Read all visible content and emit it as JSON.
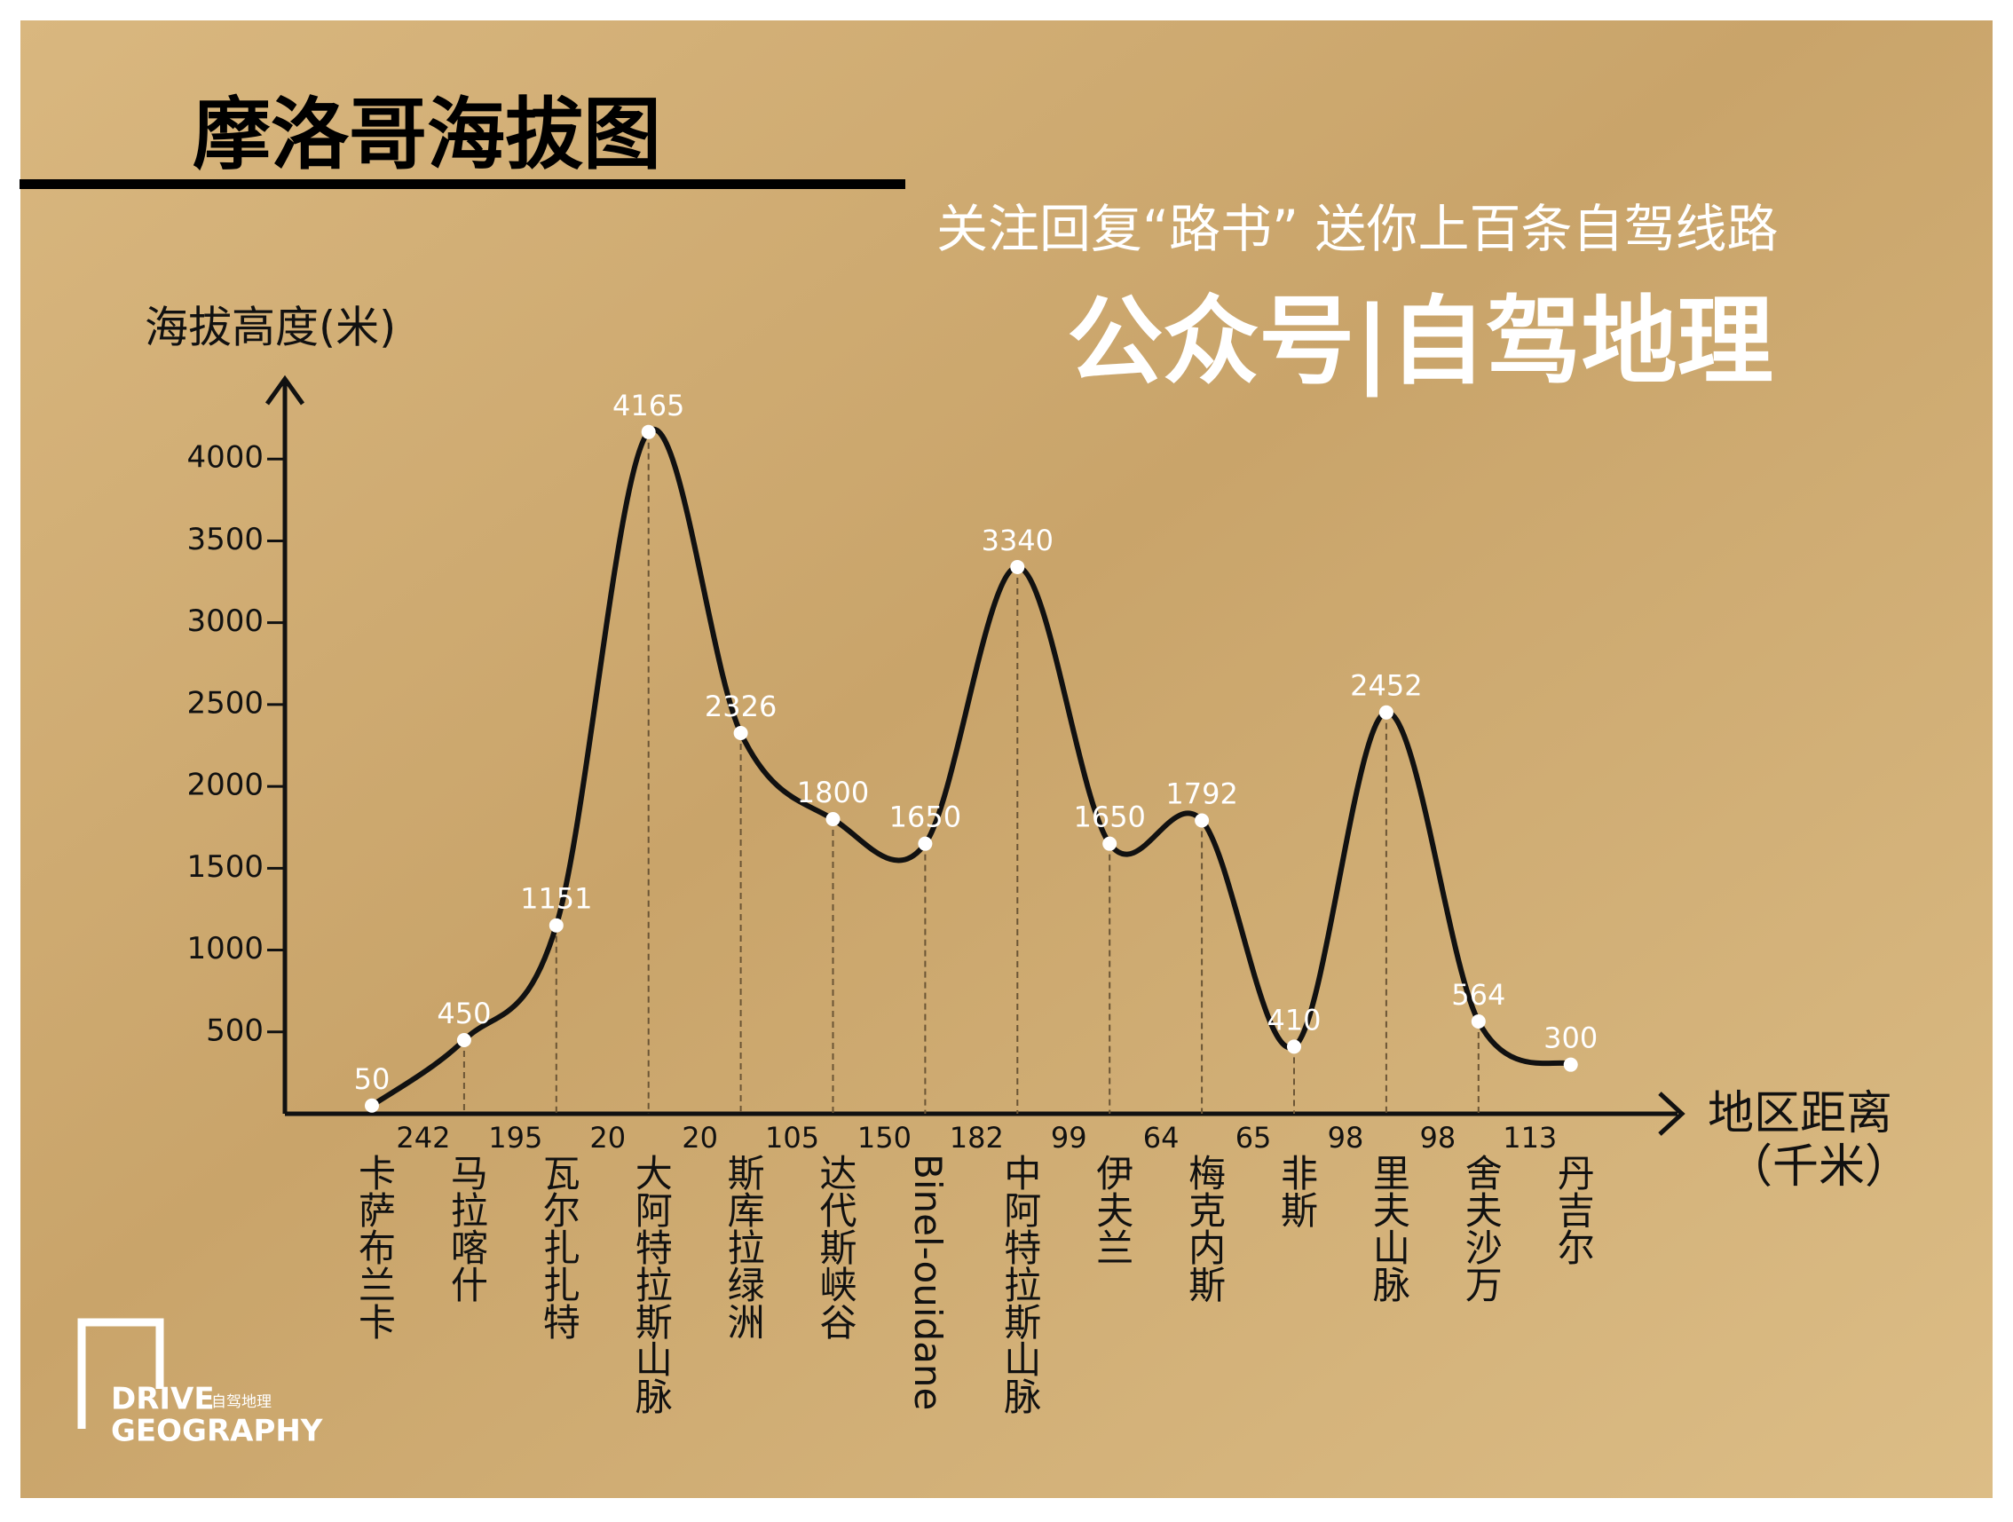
{
  "chart_data": {
    "type": "line",
    "title": "摩洛哥海拔图",
    "promo": "关注回复“路书” 送你上百条自驾线路",
    "account": "公众号|自驾地理",
    "y_label": "海拔高度(米)",
    "x_label": [
      "地区距离",
      "（千米）"
    ],
    "categories": [
      "卡萨布兰卡",
      "马拉喀什",
      "瓦尔扎扎特",
      "大阿特拉斯山脉",
      "斯库拉绿洲",
      "达代斯峡谷",
      "Binel-ouidane",
      "中阿特拉斯山脉",
      "伊夫兰",
      "梅克内斯",
      "非斯",
      "里夫山脉",
      "舍夫沙万",
      "丹吉尔"
    ],
    "series": [
      {
        "name": "海拔",
        "color": "#111111",
        "values": [
          50,
          450,
          1151,
          4165,
          2326,
          1800,
          1650,
          3340,
          1650,
          1792,
          410,
          2452,
          564,
          300
        ]
      }
    ],
    "distances": [
      242,
      195,
      20,
      20,
      105,
      150,
      182,
      99,
      64,
      65,
      98,
      98,
      113
    ],
    "ylim": [
      0,
      4500
    ],
    "yticks": [
      500,
      1000,
      1500,
      2000,
      2500,
      3000,
      3500,
      4000
    ],
    "logo": {
      "line1": "DRIVE",
      "line2": "GEOGRAPHY",
      "cn": "自驾地理"
    }
  }
}
